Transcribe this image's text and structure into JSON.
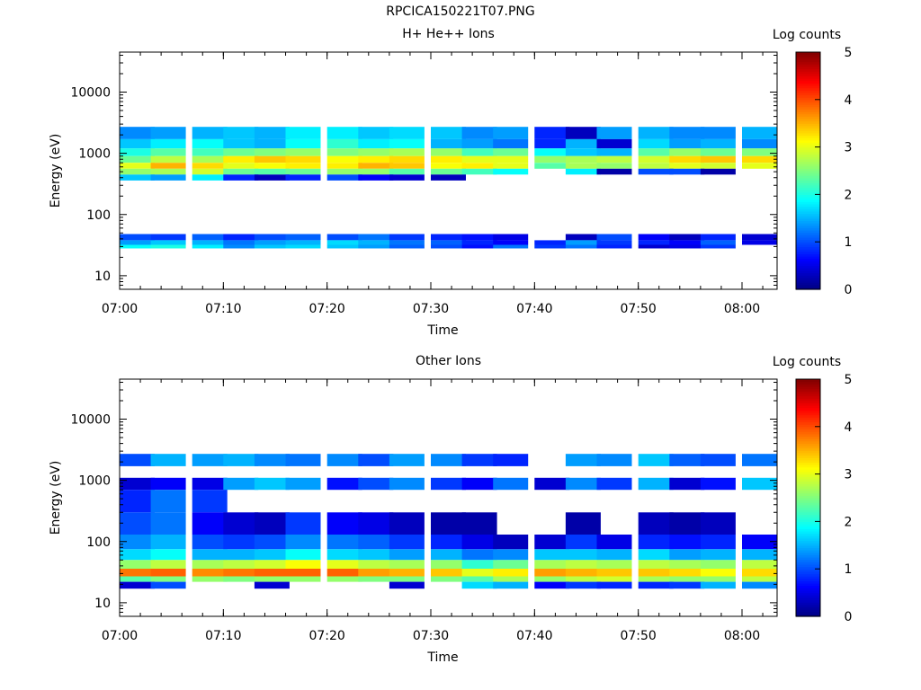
{
  "title": "RPCICA150221T07.PNG",
  "chart_data": [
    {
      "type": "heatmap",
      "title": "H+ He++ Ions",
      "xlabel": "Time",
      "ylabel": "Energy (eV)",
      "yscale": "log",
      "ylim": [
        6,
        45000
      ],
      "x_ticks": [
        "07:00",
        "07:10",
        "07:20",
        "07:30",
        "07:40",
        "07:50",
        "08:00"
      ],
      "y_ticks": [
        "10",
        "100",
        "1000",
        "10000"
      ],
      "time_bins": [
        "07:00",
        "07:03",
        "07:07",
        "07:10",
        "07:13",
        "07:16",
        "07:20",
        "07:23",
        "07:26",
        "07:30",
        "07:33",
        "07:36",
        "07:40",
        "07:43",
        "07:46",
        "07:50",
        "07:53",
        "07:56",
        "08:00"
      ],
      "colorbar": {
        "label": "Log counts",
        "min": 0,
        "max": 5,
        "ticks": [
          "0",
          "1",
          "2",
          "3",
          "4",
          "5"
        ]
      },
      "bands": [
        {
          "e_lo": 1700,
          "e_hi": 2700,
          "log_counts": [
            1.3,
            1.4,
            1.5,
            1.6,
            1.5,
            1.8,
            1.8,
            1.6,
            1.7,
            1.6,
            1.3,
            1.4,
            0.8,
            0.3,
            1.4,
            1.5,
            1.3,
            1.3,
            1.5
          ]
        },
        {
          "e_lo": 1200,
          "e_hi": 1700,
          "log_counts": [
            1.6,
            1.8,
            1.9,
            1.6,
            1.5,
            1.9,
            2.1,
            1.8,
            1.9,
            1.5,
            1.4,
            1.2,
            0.8,
            1.5,
            0.4,
            1.7,
            1.4,
            1.5,
            1.3
          ]
        },
        {
          "e_lo": 900,
          "e_hi": 1200,
          "log_counts": [
            2.0,
            2.3,
            2.2,
            2.4,
            2.5,
            2.6,
            2.5,
            2.6,
            2.7,
            2.6,
            2.2,
            2.4,
            1.9,
            1.6,
            1.5,
            2.3,
            2.6,
            2.4,
            2.5
          ]
        },
        {
          "e_lo": 700,
          "e_hi": 900,
          "log_counts": [
            2.4,
            2.8,
            2.7,
            3.2,
            3.4,
            3.3,
            3.1,
            3.2,
            3.3,
            3.2,
            3.0,
            3.0,
            2.6,
            2.7,
            2.8,
            2.9,
            3.3,
            3.4,
            3.3
          ]
        },
        {
          "e_lo": 560,
          "e_hi": 700,
          "log_counts": [
            3.0,
            3.5,
            3.3,
            3.0,
            3.1,
            3.2,
            3.2,
            3.5,
            3.4,
            3.1,
            3.2,
            3.0,
            2.3,
            2.7,
            2.6,
            2.8,
            3.0,
            2.9,
            3.0
          ]
        },
        {
          "e_lo": 450,
          "e_hi": 560,
          "log_counts": [
            2.6,
            2.7,
            2.9,
            2.4,
            2.3,
            2.4,
            2.6,
            2.6,
            2.3,
            2.4,
            2.2,
            1.9,
            0.0,
            1.8,
            0.2,
            1.0,
            1.0,
            0.2,
            0.0
          ]
        },
        {
          "e_lo": 360,
          "e_hi": 450,
          "log_counts": [
            1.6,
            1.4,
            1.8,
            0.8,
            0.3,
            0.8,
            1.0,
            0.6,
            0.4,
            0.3,
            0.0,
            0.0,
            0.0,
            0.0,
            0.0,
            0.0,
            0.0,
            0.0,
            0.0
          ]
        },
        {
          "e_lo": 38,
          "e_hi": 48,
          "log_counts": [
            1.0,
            0.9,
            1.1,
            0.8,
            1.0,
            1.1,
            1.0,
            1.2,
            0.9,
            0.8,
            0.7,
            0.5,
            0.0,
            0.3,
            1.0,
            0.6,
            0.3,
            0.8,
            0.4
          ]
        },
        {
          "e_lo": 32,
          "e_hi": 38,
          "log_counts": [
            1.4,
            1.6,
            1.5,
            1.2,
            1.4,
            1.5,
            1.7,
            1.5,
            1.2,
            1.1,
            0.8,
            0.6,
            0.8,
            1.4,
            0.9,
            0.8,
            0.6,
            1.1,
            0.5
          ]
        },
        {
          "e_lo": 28,
          "e_hi": 32,
          "log_counts": [
            1.9,
            2.0,
            1.8,
            1.3,
            1.6,
            1.7,
            1.6,
            1.4,
            1.1,
            1.0,
            0.7,
            1.2,
            0.9,
            1.2,
            0.8,
            0.4,
            0.5,
            0.9,
            0.0
          ]
        }
      ]
    },
    {
      "type": "heatmap",
      "title": "Other Ions",
      "xlabel": "Time",
      "ylabel": "Energy (eV)",
      "yscale": "log",
      "ylim": [
        6,
        45000
      ],
      "x_ticks": [
        "07:00",
        "07:10",
        "07:20",
        "07:30",
        "07:40",
        "07:50",
        "08:00"
      ],
      "y_ticks": [
        "10",
        "100",
        "1000",
        "10000"
      ],
      "time_bins": [
        "07:00",
        "07:03",
        "07:07",
        "07:10",
        "07:13",
        "07:16",
        "07:20",
        "07:23",
        "07:26",
        "07:30",
        "07:33",
        "07:36",
        "07:40",
        "07:43",
        "07:46",
        "07:50",
        "07:53",
        "07:56",
        "08:00"
      ],
      "colorbar": {
        "label": "Log counts",
        "min": 0,
        "max": 5,
        "ticks": [
          "0",
          "1",
          "2",
          "3",
          "4",
          "5"
        ]
      },
      "bands": [
        {
          "e_lo": 1700,
          "e_hi": 2700,
          "log_counts": [
            1.0,
            1.5,
            1.4,
            1.5,
            1.3,
            1.2,
            1.3,
            1.0,
            1.4,
            1.3,
            0.9,
            0.8,
            0.0,
            1.4,
            1.3,
            1.6,
            1.1,
            1.0,
            1.2
          ]
        },
        {
          "e_lo": 700,
          "e_hi": 1100,
          "log_counts": [
            0.4,
            0.6,
            0.5,
            1.4,
            1.6,
            1.4,
            0.7,
            1.0,
            1.3,
            0.9,
            0.6,
            1.2,
            0.4,
            1.3,
            0.9,
            1.5,
            0.4,
            0.7,
            1.6
          ]
        },
        {
          "e_lo": 300,
          "e_hi": 700,
          "log_counts": [
            0.8,
            1.2,
            0.9,
            0.0,
            0.0,
            0.0,
            0.0,
            0.0,
            0.0,
            0.0,
            0.0,
            0.0,
            0.0,
            0.0,
            0.0,
            0.0,
            0.0,
            0.0,
            0.0
          ]
        },
        {
          "e_lo": 130,
          "e_hi": 300,
          "log_counts": [
            1.0,
            1.2,
            0.6,
            0.4,
            0.3,
            0.9,
            0.6,
            0.5,
            0.3,
            0.2,
            0.2,
            0.0,
            0.0,
            0.2,
            0.0,
            0.3,
            0.2,
            0.3,
            0.0
          ]
        },
        {
          "e_lo": 75,
          "e_hi": 130,
          "log_counts": [
            1.3,
            1.5,
            1.0,
            0.9,
            1.0,
            1.3,
            1.2,
            1.1,
            0.9,
            0.8,
            0.5,
            0.3,
            0.4,
            0.9,
            0.5,
            0.8,
            0.7,
            0.8,
            0.6
          ]
        },
        {
          "e_lo": 50,
          "e_hi": 75,
          "log_counts": [
            1.7,
            1.9,
            1.5,
            1.5,
            1.6,
            1.9,
            1.7,
            1.6,
            1.4,
            1.5,
            1.2,
            1.3,
            1.6,
            1.6,
            1.5,
            1.7,
            1.4,
            1.5,
            1.5
          ]
        },
        {
          "e_lo": 36,
          "e_hi": 50,
          "log_counts": [
            2.6,
            2.8,
            2.7,
            2.8,
            2.9,
            3.1,
            3.0,
            2.8,
            2.7,
            2.6,
            2.1,
            2.4,
            2.7,
            2.8,
            2.7,
            2.8,
            2.7,
            2.6,
            2.8
          ]
        },
        {
          "e_lo": 27,
          "e_hi": 36,
          "log_counts": [
            3.8,
            3.9,
            3.7,
            3.8,
            3.9,
            3.9,
            3.9,
            3.6,
            3.5,
            3.4,
            3.0,
            3.2,
            3.6,
            3.5,
            3.4,
            3.4,
            3.3,
            3.1,
            3.3
          ]
        },
        {
          "e_lo": 22,
          "e_hi": 27,
          "log_counts": [
            2.3,
            2.5,
            2.6,
            2.5,
            2.6,
            2.6,
            2.6,
            2.5,
            2.5,
            2.5,
            2.3,
            2.7,
            2.6,
            2.8,
            2.9,
            2.7,
            2.6,
            2.6,
            2.8
          ]
        },
        {
          "e_lo": 17,
          "e_hi": 22,
          "log_counts": [
            0.4,
            1.0,
            0.0,
            0.0,
            0.4,
            0.0,
            0.0,
            0.0,
            0.4,
            0.0,
            1.7,
            1.5,
            0.6,
            0.9,
            0.8,
            0.8,
            0.9,
            1.5,
            1.3
          ]
        }
      ]
    }
  ]
}
